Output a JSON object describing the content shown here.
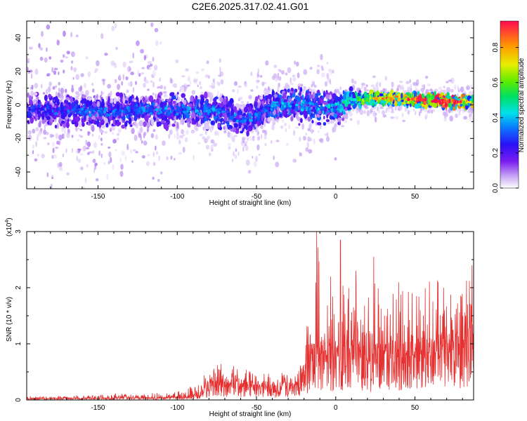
{
  "title": "C2E6.2025.317.02.41.G01",
  "chart_data": [
    {
      "type": "heatmap",
      "name": "spectrogram",
      "xlabel": "Height of straight line (km)",
      "ylabel": "Frequency (Hz)",
      "xlim": [
        -195,
        87
      ],
      "ylim": [
        -50,
        50
      ],
      "xticks": [
        -150,
        -100,
        -50,
        0,
        50
      ],
      "yticks": [
        -40,
        -20,
        0,
        20,
        40
      ],
      "colorbar": {
        "label": "Normalized spectral amplitude",
        "range": [
          0,
          0.95
        ],
        "ticks": [
          0.0,
          0.2,
          0.4,
          0.6,
          0.8
        ],
        "tick_labels": [
          "0.0",
          "0.2",
          "0.4",
          "0.6",
          "0.8"
        ]
      },
      "ridge": [
        {
          "x": -190,
          "f": -3,
          "amp": 0.25
        },
        {
          "x": -150,
          "f": -4,
          "amp": 0.3
        },
        {
          "x": -120,
          "f": -3,
          "amp": 0.3
        },
        {
          "x": -100,
          "f": -3,
          "amp": 0.32
        },
        {
          "x": -70,
          "f": -4,
          "amp": 0.32
        },
        {
          "x": -58,
          "f": -10,
          "amp": 0.3
        },
        {
          "x": -40,
          "f": 0,
          "amp": 0.35
        },
        {
          "x": -20,
          "f": 0,
          "amp": 0.35
        },
        {
          "x": 0,
          "f": -2,
          "amp": 0.35
        },
        {
          "x": 10,
          "f": 3,
          "amp": 0.45
        },
        {
          "x": 25,
          "f": 4,
          "amp": 0.65
        },
        {
          "x": 50,
          "f": 3,
          "amp": 0.8
        },
        {
          "x": 70,
          "f": 2,
          "amp": 0.9
        },
        {
          "x": 85,
          "f": 2,
          "amp": 0.7
        }
      ]
    },
    {
      "type": "line",
      "name": "snr",
      "xlabel": "Height of straight line (km)",
      "ylabel": "SNR (10 * v/v)",
      "yscale_label": "(x10^4)",
      "xlim": [
        -195,
        87
      ],
      "ylim": [
        0,
        3
      ],
      "xticks": [
        -150,
        -100,
        -50,
        0,
        50
      ],
      "yticks": [
        0,
        1,
        2,
        3
      ],
      "color": "#e53030",
      "envelope": [
        {
          "x": -195,
          "base": 0.02,
          "peak": 0.08
        },
        {
          "x": -140,
          "base": 0.03,
          "peak": 0.12
        },
        {
          "x": -110,
          "base": 0.04,
          "peak": 0.14
        },
        {
          "x": -95,
          "base": 0.05,
          "peak": 0.2
        },
        {
          "x": -85,
          "base": 0.12,
          "peak": 0.4
        },
        {
          "x": -78,
          "base": 0.3,
          "peak": 0.75
        },
        {
          "x": -60,
          "base": 0.25,
          "peak": 0.6
        },
        {
          "x": -40,
          "base": 0.2,
          "peak": 0.5
        },
        {
          "x": -25,
          "base": 0.25,
          "peak": 0.6
        },
        {
          "x": -17,
          "base": 0.6,
          "peak": 1.7
        },
        {
          "x": -12,
          "base": 0.8,
          "peak": 3.0
        },
        {
          "x": 0,
          "base": 0.7,
          "peak": 2.3
        },
        {
          "x": 20,
          "base": 0.7,
          "peak": 2.55
        },
        {
          "x": 40,
          "base": 0.8,
          "peak": 2.4
        },
        {
          "x": 60,
          "base": 0.8,
          "peak": 2.2
        },
        {
          "x": 87,
          "base": 1.0,
          "peak": 2.4
        }
      ],
      "notable_peaks": [
        {
          "x": -12,
          "y": 3.0
        },
        {
          "x": 3,
          "y": 2.85
        },
        {
          "x": 24,
          "y": 2.55
        },
        {
          "x": 86,
          "y": 2.4
        }
      ]
    }
  ]
}
